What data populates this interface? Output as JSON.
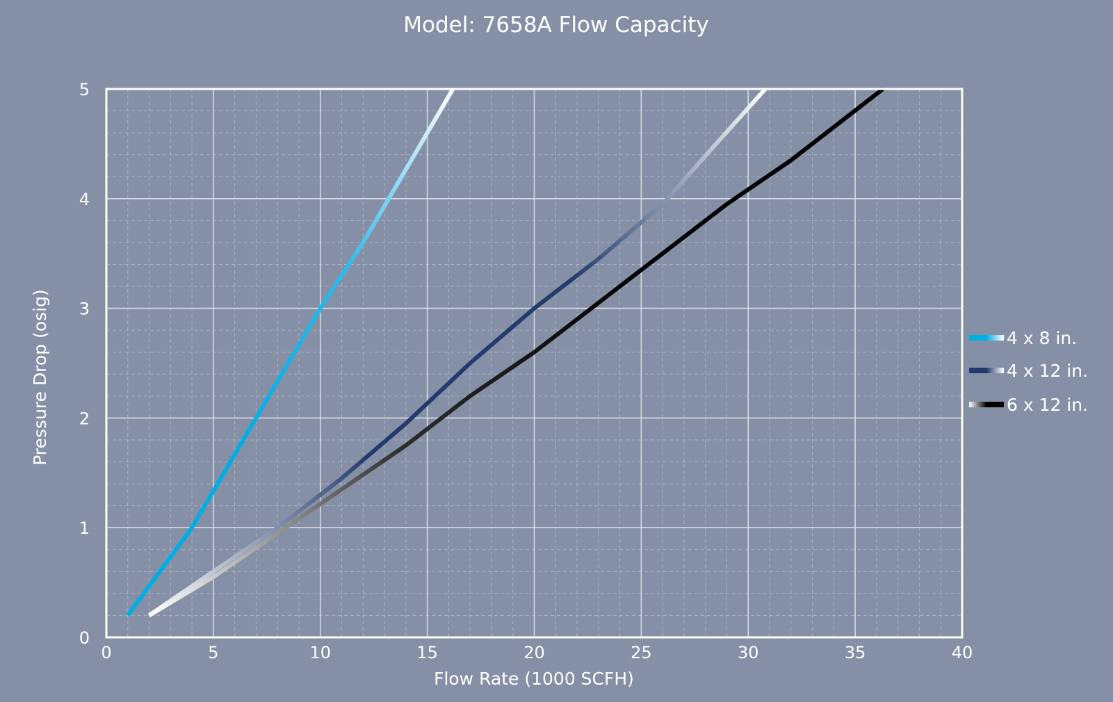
{
  "chart_data": {
    "type": "line",
    "title": "Model: 7658A Flow Capacity",
    "xlabel": "Flow Rate (1000 SCFH)",
    "ylabel": "Pressure Drop (osig)",
    "xlim": [
      0,
      40
    ],
    "ylim": [
      0,
      5
    ],
    "xticks": [
      0,
      5,
      10,
      15,
      20,
      25,
      30,
      35,
      40
    ],
    "yticks": [
      0,
      1,
      2,
      3,
      4,
      5
    ],
    "grid": true,
    "legend_position": "right",
    "series": [
      {
        "name": "4 x 8 in.",
        "gradient": [
          "#00aee6",
          "#00aee6",
          "#2fb9ea",
          "#ffffff"
        ],
        "x": [
          1,
          4,
          7,
          10,
          12,
          13.5,
          16.2
        ],
        "y": [
          0.2,
          1.0,
          2.0,
          3.0,
          3.6,
          4.1,
          5.0
        ]
      },
      {
        "name": "4 x 12 in.",
        "gradient": [
          "#ffffff",
          "#243a6e",
          "#253b6e",
          "#ffffff"
        ],
        "x": [
          2,
          5,
          8,
          11,
          14,
          17,
          20,
          23,
          26,
          28.5,
          30.8
        ],
        "y": [
          0.2,
          0.6,
          1.0,
          1.45,
          1.95,
          2.5,
          3.0,
          3.45,
          3.95,
          4.5,
          5.0
        ]
      },
      {
        "name": "6 x 12 in.",
        "gradient": [
          "#ffffff",
          "#2e2e2e",
          "#000000",
          "#000000"
        ],
        "x": [
          2,
          5,
          8,
          11,
          14,
          17,
          20,
          23,
          26,
          29,
          32,
          36.3
        ],
        "y": [
          0.2,
          0.55,
          0.95,
          1.35,
          1.75,
          2.2,
          2.6,
          3.05,
          3.5,
          3.95,
          4.35,
          5.0
        ]
      }
    ]
  },
  "colors": {
    "background": "#8590a6",
    "plot_border": "#ffffff",
    "major_grid": "#d9dde6",
    "minor_grid": "#a9b2c4"
  }
}
